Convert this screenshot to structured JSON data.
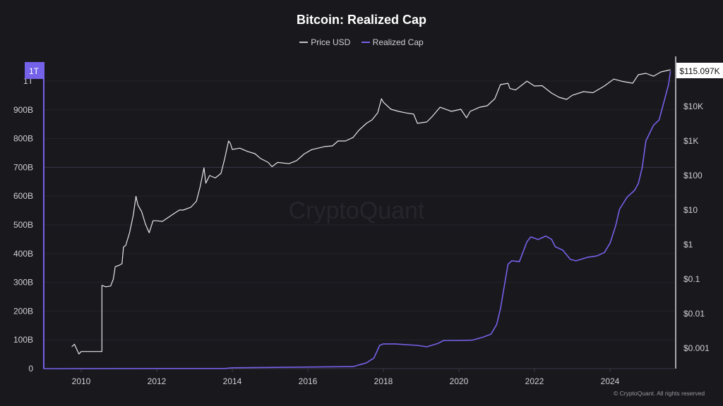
{
  "chart_data": {
    "type": "line",
    "title": "Bitcoin: Realized Cap",
    "legend_position": "top-center",
    "grid": true,
    "watermark": "CryptoQuant",
    "copyright": "© CryptoQuant. All rights reserved",
    "x_ticks": [
      "2010",
      "2012",
      "2014",
      "2016",
      "2018",
      "2020",
      "2022",
      "2024"
    ],
    "xlim": [
      2009.0,
      2025.7
    ],
    "left_axis": {
      "scale": "linear",
      "ylim": [
        0,
        1050
      ],
      "unit": "B",
      "ticks": [
        "0",
        "100B",
        "200B",
        "300B",
        "400B",
        "500B",
        "600B",
        "700B",
        "800B",
        "900B",
        "1T"
      ],
      "current_label": "1T"
    },
    "right_axis": {
      "scale": "log",
      "ticks": [
        "$0.001",
        "$0.01",
        "$0.1",
        "$1",
        "$10",
        "$100",
        "$1K",
        "$10K"
      ],
      "current_label": "$115.097K"
    },
    "series": [
      {
        "name": "Price USD",
        "axis": "right",
        "color": "#e6e6ea",
        "points": [
          [
            2009.75,
            0.0011
          ],
          [
            2009.82,
            0.0013
          ],
          [
            2009.94,
            0.00068
          ],
          [
            2010.0,
            0.0008
          ],
          [
            2010.55,
            0.0008
          ],
          [
            2010.55,
            0.066
          ],
          [
            2010.65,
            0.06
          ],
          [
            2010.78,
            0.063
          ],
          [
            2010.85,
            0.1
          ],
          [
            2010.9,
            0.23
          ],
          [
            2011.0,
            0.25
          ],
          [
            2011.08,
            0.28
          ],
          [
            2011.12,
            0.85
          ],
          [
            2011.18,
            0.95
          ],
          [
            2011.28,
            2.2
          ],
          [
            2011.38,
            7.2
          ],
          [
            2011.45,
            25
          ],
          [
            2011.5,
            14
          ],
          [
            2011.6,
            9
          ],
          [
            2011.7,
            3.9
          ],
          [
            2011.8,
            2.2
          ],
          [
            2011.9,
            4.9
          ],
          [
            2012.0,
            4.9
          ],
          [
            2012.15,
            4.7
          ],
          [
            2012.4,
            7.2
          ],
          [
            2012.6,
            10
          ],
          [
            2012.7,
            10
          ],
          [
            2012.9,
            12
          ],
          [
            2013.05,
            18
          ],
          [
            2013.15,
            48
          ],
          [
            2013.25,
            167
          ],
          [
            2013.3,
            60
          ],
          [
            2013.4,
            100
          ],
          [
            2013.55,
            85
          ],
          [
            2013.7,
            115
          ],
          [
            2013.8,
            310
          ],
          [
            2013.9,
            1000
          ],
          [
            2013.95,
            850
          ],
          [
            2014.0,
            570
          ],
          [
            2014.2,
            620
          ],
          [
            2014.4,
            500
          ],
          [
            2014.6,
            430
          ],
          [
            2014.75,
            310
          ],
          [
            2014.95,
            240
          ],
          [
            2015.05,
            180
          ],
          [
            2015.2,
            240
          ],
          [
            2015.5,
            220
          ],
          [
            2015.7,
            270
          ],
          [
            2015.9,
            420
          ],
          [
            2016.1,
            560
          ],
          [
            2016.45,
            690
          ],
          [
            2016.65,
            720
          ],
          [
            2016.8,
            1000
          ],
          [
            2017.0,
            1000
          ],
          [
            2017.2,
            1270
          ],
          [
            2017.35,
            2030
          ],
          [
            2017.55,
            3230
          ],
          [
            2017.7,
            4100
          ],
          [
            2017.85,
            6550
          ],
          [
            2017.95,
            16700
          ],
          [
            2018.0,
            13200
          ],
          [
            2018.2,
            8300
          ],
          [
            2018.4,
            7200
          ],
          [
            2018.6,
            6500
          ],
          [
            2018.8,
            6000
          ],
          [
            2018.9,
            3230
          ],
          [
            2019.15,
            3550
          ],
          [
            2019.3,
            5200
          ],
          [
            2019.5,
            9500
          ],
          [
            2019.8,
            7200
          ],
          [
            2020.05,
            8300
          ],
          [
            2020.2,
            4700
          ],
          [
            2020.3,
            7200
          ],
          [
            2020.55,
            9500
          ],
          [
            2020.75,
            10500
          ],
          [
            2020.95,
            16700
          ],
          [
            2021.1,
            43000
          ],
          [
            2021.3,
            47000
          ],
          [
            2021.35,
            33000
          ],
          [
            2021.5,
            30000
          ],
          [
            2021.8,
            54000
          ],
          [
            2022.0,
            39000
          ],
          [
            2022.2,
            40000
          ],
          [
            2022.45,
            24400
          ],
          [
            2022.65,
            18400
          ],
          [
            2022.85,
            16000
          ],
          [
            2023.0,
            21000
          ],
          [
            2023.3,
            26800
          ],
          [
            2023.55,
            25000
          ],
          [
            2023.85,
            39000
          ],
          [
            2024.1,
            62000
          ],
          [
            2024.3,
            54000
          ],
          [
            2024.6,
            47000
          ],
          [
            2024.75,
            83000
          ],
          [
            2024.95,
            91000
          ],
          [
            2025.15,
            75000
          ],
          [
            2025.35,
            100000
          ],
          [
            2025.6,
            115097
          ]
        ]
      },
      {
        "name": "Realized Cap",
        "axis": "left",
        "color": "#7462e8",
        "points": [
          [
            2009.0,
            0
          ],
          [
            2013.8,
            0.5
          ],
          [
            2014.0,
            3
          ],
          [
            2017.2,
            7
          ],
          [
            2017.55,
            20
          ],
          [
            2017.75,
            37
          ],
          [
            2017.9,
            81
          ],
          [
            2018.0,
            86
          ],
          [
            2018.3,
            86
          ],
          [
            2018.9,
            81
          ],
          [
            2019.15,
            76
          ],
          [
            2019.45,
            88
          ],
          [
            2019.6,
            98
          ],
          [
            2020.0,
            98
          ],
          [
            2020.35,
            99
          ],
          [
            2020.65,
            110
          ],
          [
            2020.85,
            120
          ],
          [
            2021.0,
            154
          ],
          [
            2021.1,
            208
          ],
          [
            2021.3,
            363
          ],
          [
            2021.4,
            375
          ],
          [
            2021.6,
            372
          ],
          [
            2021.8,
            441
          ],
          [
            2021.9,
            458
          ],
          [
            2022.1,
            449
          ],
          [
            2022.3,
            461
          ],
          [
            2022.45,
            450
          ],
          [
            2022.55,
            424
          ],
          [
            2022.75,
            412
          ],
          [
            2022.95,
            380
          ],
          [
            2023.1,
            375
          ],
          [
            2023.4,
            387
          ],
          [
            2023.65,
            392
          ],
          [
            2023.85,
            404
          ],
          [
            2024.0,
            436
          ],
          [
            2024.15,
            497
          ],
          [
            2024.25,
            554
          ],
          [
            2024.45,
            596
          ],
          [
            2024.65,
            620
          ],
          [
            2024.75,
            644
          ],
          [
            2024.85,
            698
          ],
          [
            2024.95,
            792
          ],
          [
            2025.15,
            846
          ],
          [
            2025.3,
            865
          ],
          [
            2025.45,
            939
          ],
          [
            2025.55,
            988
          ],
          [
            2025.6,
            1035
          ]
        ]
      }
    ]
  }
}
